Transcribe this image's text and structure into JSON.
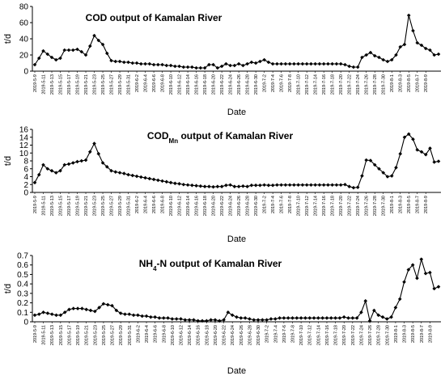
{
  "chart_data": [
    {
      "type": "line",
      "title": "COD output of Kamalan River",
      "title_sub": "",
      "title_after": "",
      "xlabel": "Date",
      "ylabel": "t/d",
      "ylim": [
        0,
        80
      ],
      "yticks": [
        "0",
        "20",
        "40",
        "60",
        "80"
      ],
      "x_tick_labels": [
        "2019-5-9",
        "2019-5-11",
        "2019-5-13",
        "2019-5-15",
        "2019-5-17",
        "2019-5-19",
        "2019-5-21",
        "2019-5-23",
        "2019-5-25",
        "2019-5-27",
        "2019-5-29",
        "2019-5-31",
        "2019-6-2",
        "2019-6-4",
        "2019-6-6",
        "2019-6-8",
        "2019-6-10",
        "2019-6-12",
        "2019-6-14",
        "2019-6-16",
        "2019-6-18",
        "2019-6-20",
        "2019-6-22",
        "2019-6-24",
        "2019-6-26",
        "2019-6-28",
        "2019-6-30",
        "2019-7-2",
        "2019-7-4",
        "2019-7-6",
        "2019-7-8",
        "2019-7-10",
        "2019-7-12",
        "2019-7-14",
        "2019-7-16",
        "2019-7-18",
        "2019-7-20",
        "2019-7-22",
        "2019-7-24",
        "2019-7-26",
        "2019-7-28",
        "2019-7-30",
        "2019-8-1",
        "2019-8-3",
        "2019-8-5",
        "2019-8-7",
        "2019-8-9"
      ],
      "values": [
        8,
        16,
        25,
        21,
        17,
        14,
        16,
        26,
        26,
        26,
        27,
        24,
        20,
        31,
        44,
        38,
        33,
        22,
        13,
        12,
        12,
        11,
        11,
        10,
        10,
        9,
        9,
        9,
        8,
        8,
        8,
        7,
        7,
        6,
        6,
        5,
        5,
        5,
        4,
        4,
        4,
        8,
        8,
        4,
        6,
        9,
        7,
        7,
        9,
        7,
        9,
        11,
        10,
        12,
        14,
        11,
        9,
        9,
        9,
        9,
        9,
        9,
        9,
        9,
        9,
        9,
        9,
        9,
        9,
        9,
        9,
        9,
        9,
        8,
        6,
        5,
        5,
        17,
        20,
        23,
        19,
        17,
        14,
        12,
        14,
        20,
        30,
        33,
        69,
        50,
        35,
        32,
        28,
        26,
        20,
        21
      ],
      "marker": "diamond"
    },
    {
      "type": "line",
      "title": "COD",
      "title_sub": "Mn",
      "title_after": " output of Kamalan River",
      "xlabel": "Date",
      "ylabel": "t/d",
      "ylim": [
        0,
        16
      ],
      "yticks": [
        "0",
        "2",
        "4",
        "6",
        "8",
        "10",
        "12",
        "14",
        "16"
      ],
      "x_tick_labels": [
        "2019-5-9",
        "2019-5-11",
        "2019-5-13",
        "2019-5-15",
        "2019-5-17",
        "2019-5-19",
        "2019-5-21",
        "2019-5-23",
        "2019-5-25",
        "2019-5-27",
        "2019-5-29",
        "2019-5-31",
        "2019-6-2",
        "2019-6-4",
        "2019-6-6",
        "2019-6-8",
        "2019-6-10",
        "2019-6-12",
        "2019-6-14",
        "2019-6-16",
        "2019-6-18",
        "2019-6-20",
        "2019-6-22",
        "2019-6-24",
        "2019-6-26",
        "2019-6-28",
        "2019-6-30",
        "2019-7-2",
        "2019-7-4",
        "2019-7-6",
        "2019-7-8",
        "2019-7-10",
        "2019-7-12",
        "2019-7-14",
        "2019-7-16",
        "2019-7-18",
        "2019-7-20",
        "2019-7-22",
        "2019-7-24",
        "2019-7-26",
        "2019-7-28",
        "2019-7-30",
        "2019-8-1",
        "2019-8-3",
        "2019-8-5",
        "2019-8-7",
        "2019-8-9"
      ],
      "values": [
        2.5,
        4.5,
        7,
        6,
        5.5,
        5,
        5.5,
        7,
        7.2,
        7.5,
        7.8,
        8,
        8.2,
        10.3,
        12.4,
        9.8,
        7.5,
        6.5,
        5.5,
        5.2,
        5,
        4.8,
        4.5,
        4.3,
        4.1,
        3.9,
        3.7,
        3.5,
        3.3,
        3.1,
        2.9,
        2.7,
        2.5,
        2.3,
        2.2,
        2,
        1.9,
        1.8,
        1.7,
        1.6,
        1.5,
        1.5,
        1.4,
        1.5,
        1.5,
        1.8,
        1.9,
        1.5,
        1.5,
        1.6,
        1.5,
        1.8,
        1.8,
        1.8,
        1.9,
        1.8,
        1.8,
        1.9,
        1.9,
        1.9,
        1.9,
        1.9,
        1.9,
        1.9,
        1.9,
        1.9,
        1.9,
        1.9,
        1.9,
        1.9,
        1.9,
        1.9,
        1.9,
        2,
        1.5,
        1.2,
        1.3,
        4.2,
        8.2,
        8.1,
        7,
        6,
        5,
        4,
        4.2,
        6.3,
        9.8,
        14,
        14.8,
        13.5,
        10.8,
        10.3,
        9.6,
        11.2,
        7.7,
        7.9
      ],
      "marker": "diamond"
    },
    {
      "type": "line",
      "title": "NH",
      "title_sub": "4",
      "title_after": "-N output of Kamalan River",
      "xlabel": "Date",
      "ylabel": "t/d",
      "ylim": [
        0,
        0.7
      ],
      "yticks": [
        "0",
        "0.1",
        "0.2",
        "0.3",
        "0.4",
        "0.5",
        "0.6",
        "0.7"
      ],
      "x_tick_labels": [
        "2019-5-9",
        "2019-5-11",
        "2019-5-13",
        "2019-5-15",
        "2019-5-17",
        "2019-5-19",
        "2019-5-21",
        "2019-5-23",
        "2019-5-25",
        "2019-5-27",
        "2019-5-29",
        "2019-5-31",
        "2019-6-2",
        "2019-6-4",
        "2019-6-6",
        "2019-6-8",
        "2019-6-10",
        "2019-6-12",
        "2019-6-14",
        "2019-6-16",
        "2019-6-18",
        "2019-6-20",
        "2019-6-22",
        "2019-6-24",
        "2019-6-26",
        "2019-6-28",
        "2019-6-30",
        "2019-7-2",
        "2019-7-4",
        "2019-7-6",
        "2019-7-8",
        "2019-7-10",
        "2019-7-12",
        "2019-7-14",
        "2019-7-16",
        "2019-7-18",
        "2019-7-20",
        "2019-7-22",
        "2019-7-24",
        "2019-7-26",
        "2019-7-28",
        "2019-7-30",
        "2019-8-1",
        "2019-8-3",
        "2019-8-5",
        "2019-8-7",
        "2019-8-9"
      ],
      "values": [
        0.07,
        0.08,
        0.1,
        0.09,
        0.08,
        0.07,
        0.07,
        0.1,
        0.13,
        0.14,
        0.14,
        0.14,
        0.13,
        0.12,
        0.11,
        0.15,
        0.19,
        0.18,
        0.17,
        0.12,
        0.09,
        0.08,
        0.08,
        0.07,
        0.07,
        0.06,
        0.06,
        0.05,
        0.05,
        0.04,
        0.04,
        0.04,
        0.03,
        0.03,
        0.03,
        0.02,
        0.02,
        0.02,
        0.01,
        0.01,
        0.01,
        0.02,
        0.02,
        0.01,
        0.02,
        0.1,
        0.07,
        0.05,
        0.04,
        0.04,
        0.03,
        0.02,
        0.02,
        0.02,
        0.02,
        0.03,
        0.03,
        0.04,
        0.04,
        0.04,
        0.04,
        0.04,
        0.04,
        0.04,
        0.04,
        0.04,
        0.04,
        0.04,
        0.04,
        0.04,
        0.04,
        0.04,
        0.05,
        0.04,
        0.04,
        0.04,
        0.1,
        0.22,
        0.01,
        0.12,
        0.07,
        0.05,
        0.03,
        0.05,
        0.15,
        0.24,
        0.42,
        0.55,
        0.6,
        0.46,
        0.66,
        0.51,
        0.52,
        0.35,
        0.37
      ],
      "marker": "diamond"
    }
  ]
}
